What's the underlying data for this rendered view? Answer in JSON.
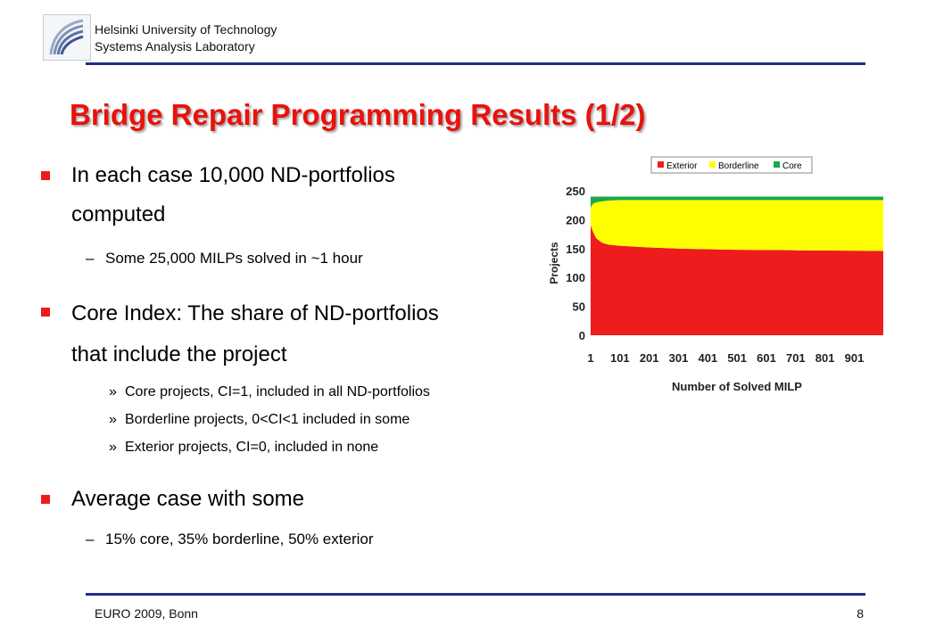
{
  "header": {
    "university": "Helsinki University of Technology",
    "lab": "Systems Analysis Laboratory"
  },
  "title": "Bridge Repair Programming Results (1/2)",
  "bullets": {
    "b1_line1": "In each case 10,000 ND-portfolios",
    "b1_line2": "computed",
    "b1_sub": "Some 25,000 MILPs solved in ~1 hour",
    "b2_line1": "Core Index: The share of ND-portfolios",
    "b2_line2": "that include the project",
    "b2_sub1": "Core projects, CI=1, included in all ND-portfolios",
    "b2_sub2": "Borderline projects, 0<CI<1 included in some",
    "b2_sub3": "Exterior projects, CI=0, included in none",
    "b3_line1": "Average case with some",
    "b3_sub": "15% core, 35% borderline, 50% exterior"
  },
  "markers": {
    "dash": "–",
    "sub": "»"
  },
  "footer": {
    "left": "EURO 2009, Bonn",
    "page": "8"
  },
  "colors": {
    "accent": "#e8120c",
    "rule": "#1f2d8a",
    "exterior": "#ee1c1c",
    "borderline": "#ffff00",
    "core": "#19a84a"
  },
  "chart_data": {
    "type": "area",
    "stacked": true,
    "xlabel": "Number of Solved MILP",
    "ylabel": "Projects",
    "xticks": [
      "1",
      "101",
      "201",
      "301",
      "401",
      "501",
      "601",
      "701",
      "801",
      "901"
    ],
    "yticks": [
      "0",
      "50",
      "100",
      "150",
      "200",
      "250"
    ],
    "xlim": [
      1,
      1000
    ],
    "ylim": [
      0,
      250
    ],
    "legend_position": "top",
    "series": [
      {
        "name": "Exterior",
        "color": "#ee1c1c",
        "x": [
          1,
          5,
          10,
          20,
          40,
          60,
          100,
          200,
          300,
          500,
          700,
          1000
        ],
        "values": [
          190,
          185,
          178,
          168,
          160,
          157,
          155,
          152,
          150,
          148,
          147,
          146
        ]
      },
      {
        "name": "Borderline",
        "color": "#ffff00",
        "x": [
          1,
          5,
          10,
          20,
          40,
          60,
          100,
          200,
          300,
          500,
          700,
          1000
        ],
        "values": [
          30,
          40,
          50,
          62,
          72,
          76,
          79,
          82,
          84,
          86,
          87,
          88
        ]
      },
      {
        "name": "Core",
        "color": "#19a84a",
        "x": [
          1,
          5,
          10,
          20,
          40,
          60,
          100,
          200,
          300,
          500,
          700,
          1000
        ],
        "values": [
          20,
          15,
          12,
          10,
          8,
          7,
          6,
          6,
          6,
          6,
          6,
          6
        ]
      }
    ]
  }
}
